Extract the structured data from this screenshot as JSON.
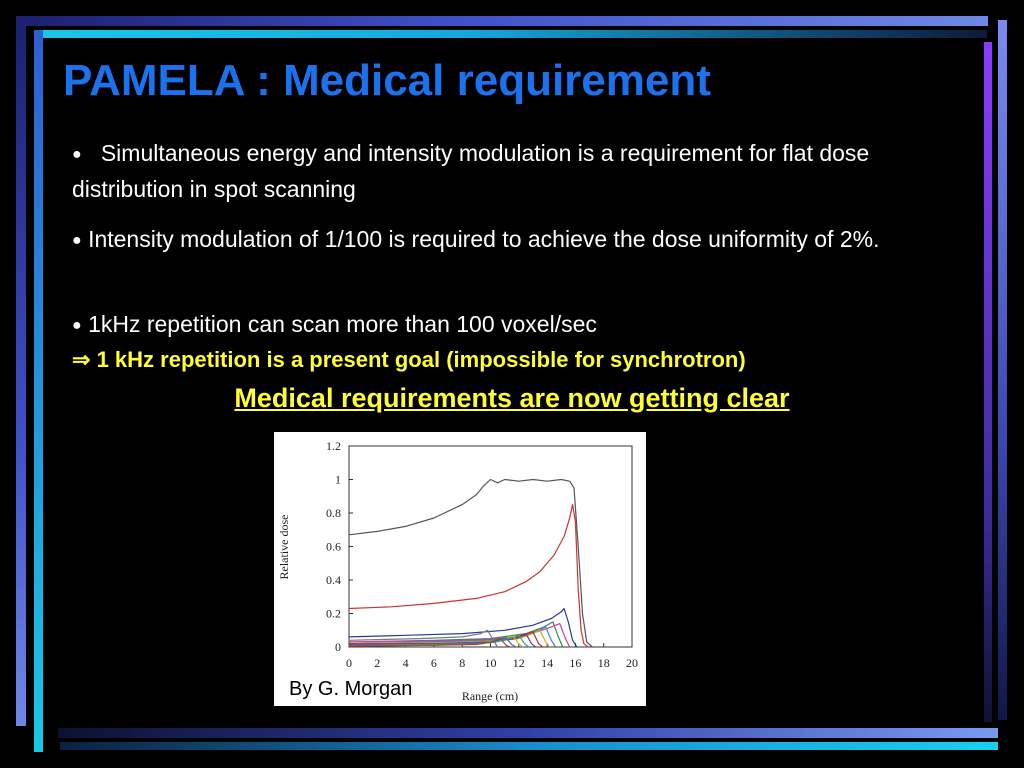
{
  "slide": {
    "title": "PAMELA : Medical requirement",
    "bullet_symbol": "●",
    "bullets": [
      "Simultaneous energy and intensity modulation is a requirement for flat dose distribution in spot scanning",
      "Intensity modulation of 1/100 is required to achieve the dose uniformity of 2%.",
      "1kHz repetition can  scan more than 100 voxel/sec"
    ],
    "implies_symbol": "⇒",
    "goal": "1 kHz repetition is a present goal (impossible for synchrotron)",
    "highlight": "Medical requirements are now getting clear",
    "credit": "By G. Morgan",
    "colors": {
      "title": "#1a72ee",
      "highlight": "#ffff33",
      "background": "#000000"
    }
  },
  "chart_data": {
    "type": "line",
    "xlabel": "Range (cm)",
    "ylabel": "Relative dose",
    "xlim": [
      0,
      20
    ],
    "ylim": [
      0,
      1.2
    ],
    "xticks": [
      "0",
      "2",
      "4",
      "6",
      "8",
      "10",
      "12",
      "14",
      "16",
      "18",
      "20"
    ],
    "yticks": [
      "0",
      "0.2",
      "0.4",
      "0.6",
      "0.8",
      "1",
      "1.2"
    ],
    "grid": false,
    "series": [
      {
        "color": "#555555",
        "points": [
          [
            0,
            0.67
          ],
          [
            2,
            0.69
          ],
          [
            4,
            0.72
          ],
          [
            6,
            0.77
          ],
          [
            8,
            0.85
          ],
          [
            9,
            0.91
          ],
          [
            9.5,
            0.96
          ],
          [
            10,
            1.0
          ],
          [
            10.5,
            0.98
          ],
          [
            11,
            1.0
          ],
          [
            12,
            0.99
          ],
          [
            13,
            1.0
          ],
          [
            14,
            0.99
          ],
          [
            15,
            1.0
          ],
          [
            15.6,
            0.99
          ],
          [
            15.9,
            0.95
          ],
          [
            16.2,
            0.6
          ],
          [
            16.5,
            0.2
          ],
          [
            16.8,
            0.03
          ],
          [
            17.2,
            0
          ]
        ]
      },
      {
        "color": "#cc3333",
        "points": [
          [
            0,
            0.23
          ],
          [
            3,
            0.24
          ],
          [
            6,
            0.26
          ],
          [
            9,
            0.29
          ],
          [
            11,
            0.33
          ],
          [
            12.5,
            0.39
          ],
          [
            13.5,
            0.45
          ],
          [
            14.5,
            0.55
          ],
          [
            15.2,
            0.66
          ],
          [
            15.6,
            0.77
          ],
          [
            15.8,
            0.85
          ],
          [
            16.0,
            0.75
          ],
          [
            16.2,
            0.35
          ],
          [
            16.4,
            0.1
          ],
          [
            16.6,
            0.02
          ],
          [
            16.9,
            0
          ]
        ]
      },
      {
        "color": "#2a3a9a",
        "points": [
          [
            0,
            0.06
          ],
          [
            4,
            0.07
          ],
          [
            8,
            0.08
          ],
          [
            11,
            0.1
          ],
          [
            13,
            0.13
          ],
          [
            14.3,
            0.17
          ],
          [
            15,
            0.21
          ],
          [
            15.2,
            0.23
          ],
          [
            15.5,
            0.15
          ],
          [
            15.8,
            0.04
          ],
          [
            16.1,
            0
          ]
        ]
      },
      {
        "color": "#7a7a7a",
        "points": [
          [
            0,
            0.04
          ],
          [
            5,
            0.05
          ],
          [
            8,
            0.06
          ],
          [
            9.3,
            0.08
          ],
          [
            9.8,
            0.1
          ],
          [
            10.2,
            0.04
          ],
          [
            10.5,
            0
          ]
        ]
      },
      {
        "color": "#2e8b57",
        "points": [
          [
            0,
            0.03
          ],
          [
            6,
            0.04
          ],
          [
            10,
            0.05
          ],
          [
            12.5,
            0.08
          ],
          [
            13.8,
            0.12
          ],
          [
            14.4,
            0.15
          ],
          [
            14.8,
            0.06
          ],
          [
            15.1,
            0
          ]
        ]
      },
      {
        "color": "#d63aa0",
        "points": [
          [
            0,
            0.03
          ],
          [
            6,
            0.035
          ],
          [
            10,
            0.045
          ],
          [
            12.5,
            0.07
          ],
          [
            14,
            0.11
          ],
          [
            14.9,
            0.14
          ],
          [
            15.3,
            0.05
          ],
          [
            15.6,
            0
          ]
        ]
      },
      {
        "color": "#2a8fd0",
        "points": [
          [
            0,
            0.02
          ],
          [
            6,
            0.03
          ],
          [
            10,
            0.04
          ],
          [
            12,
            0.06
          ],
          [
            13.4,
            0.1
          ],
          [
            13.9,
            0.12
          ],
          [
            14.3,
            0.04
          ],
          [
            14.6,
            0
          ]
        ]
      },
      {
        "color": "#e0a020",
        "points": [
          [
            0,
            0.02
          ],
          [
            6,
            0.025
          ],
          [
            10,
            0.035
          ],
          [
            12,
            0.05
          ],
          [
            13,
            0.08
          ],
          [
            13.5,
            0.1
          ],
          [
            13.9,
            0.03
          ],
          [
            14.2,
            0
          ]
        ]
      },
      {
        "color": "#b03030",
        "points": [
          [
            0,
            0.02
          ],
          [
            6,
            0.02
          ],
          [
            10,
            0.03
          ],
          [
            11.8,
            0.05
          ],
          [
            12.7,
            0.08
          ],
          [
            13.0,
            0.09
          ],
          [
            13.4,
            0.02
          ],
          [
            13.7,
            0
          ]
        ]
      },
      {
        "color": "#6a3aa0",
        "points": [
          [
            0,
            0.015
          ],
          [
            6,
            0.02
          ],
          [
            10,
            0.03
          ],
          [
            11.5,
            0.05
          ],
          [
            12.2,
            0.07
          ],
          [
            12.5,
            0.08
          ],
          [
            12.9,
            0.02
          ],
          [
            13.2,
            0
          ]
        ]
      },
      {
        "color": "#30a0a0",
        "points": [
          [
            0,
            0.01
          ],
          [
            6,
            0.015
          ],
          [
            10,
            0.025
          ],
          [
            11,
            0.04
          ],
          [
            11.7,
            0.06
          ],
          [
            12.0,
            0.07
          ],
          [
            12.4,
            0.02
          ],
          [
            12.7,
            0
          ]
        ]
      },
      {
        "color": "#c0c020",
        "points": [
          [
            0,
            0.01
          ],
          [
            6,
            0.01
          ],
          [
            9.5,
            0.02
          ],
          [
            10.6,
            0.04
          ],
          [
            11.3,
            0.06
          ],
          [
            11.6,
            0.065
          ],
          [
            12.0,
            0.02
          ],
          [
            12.3,
            0
          ]
        ]
      },
      {
        "color": "#4060c0",
        "points": [
          [
            0,
            0.01
          ],
          [
            6,
            0.01
          ],
          [
            9,
            0.02
          ],
          [
            10.2,
            0.03
          ],
          [
            10.9,
            0.05
          ],
          [
            11.1,
            0.055
          ],
          [
            11.5,
            0.015
          ],
          [
            11.8,
            0
          ]
        ]
      },
      {
        "color": "#a05020",
        "points": [
          [
            0,
            0.005
          ],
          [
            6,
            0.01
          ],
          [
            9,
            0.015
          ],
          [
            10,
            0.03
          ],
          [
            10.5,
            0.045
          ],
          [
            10.7,
            0.05
          ],
          [
            11.1,
            0.01
          ],
          [
            11.4,
            0
          ]
        ]
      }
    ]
  }
}
